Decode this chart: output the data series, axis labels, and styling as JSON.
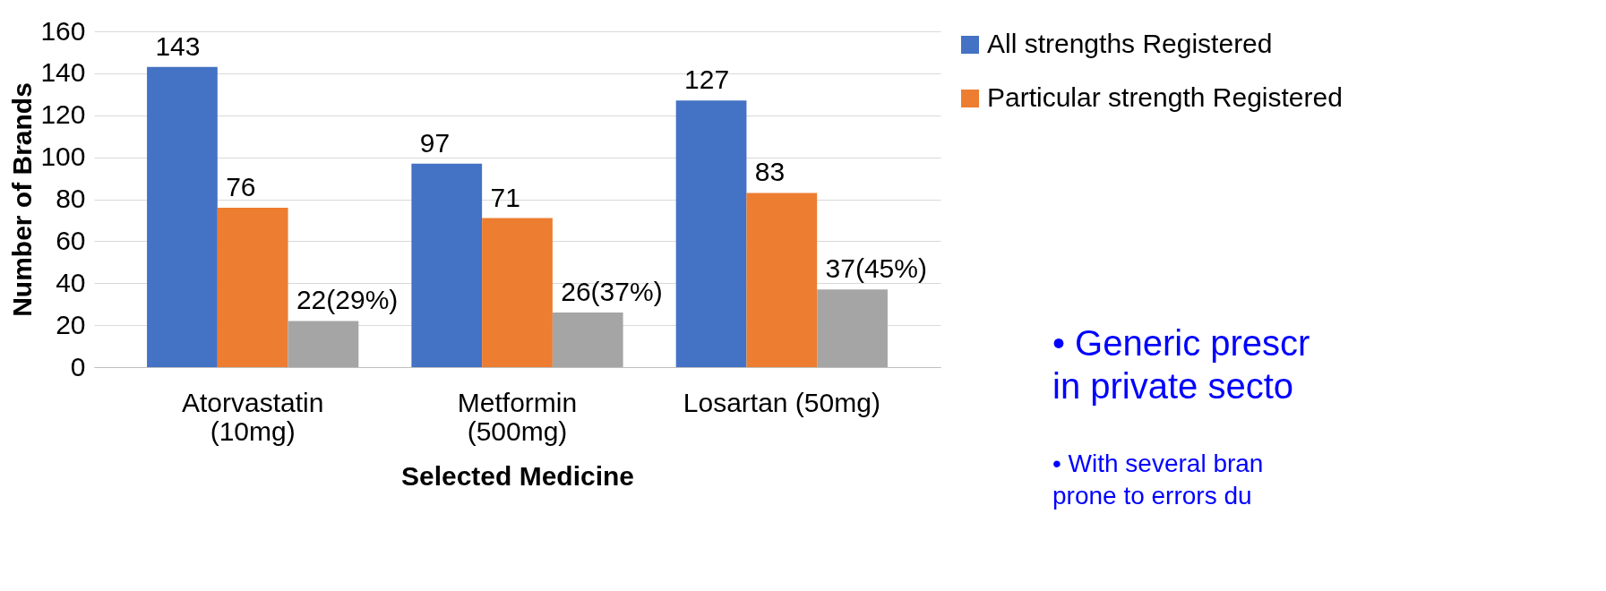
{
  "chart_data": {
    "type": "bar",
    "xlabel": "Selected Medicine",
    "ylabel": "Number of Brands",
    "categories": [
      "Atorvastatin\n(10mg)",
      "Metformin\n(500mg)",
      "Losartan (50mg)"
    ],
    "series": [
      {
        "name": "All strengths Registered",
        "color": "#4472c4",
        "values": [
          143,
          97,
          127
        ],
        "value_labels": [
          "143",
          "97",
          "127"
        ]
      },
      {
        "name": "Particular strength Registered",
        "color": "#ed7d31",
        "values": [
          76,
          71,
          83
        ],
        "value_labels": [
          "76",
          "71",
          "83"
        ]
      },
      {
        "color": "#a5a5a5",
        "values": [
          22,
          26,
          37
        ],
        "value_labels": [
          "22(29%)",
          "26(37%)",
          "37(45%)"
        ]
      }
    ],
    "ylim": [
      0,
      160
    ],
    "yticks": [
      0,
      20,
      40,
      60,
      80,
      100,
      120,
      140,
      160
    ],
    "grid": "y",
    "legend": "right",
    "annotations": [
      "• Generic prescr\nin private secto",
      "• With several bran\nprone to errors du"
    ]
  }
}
